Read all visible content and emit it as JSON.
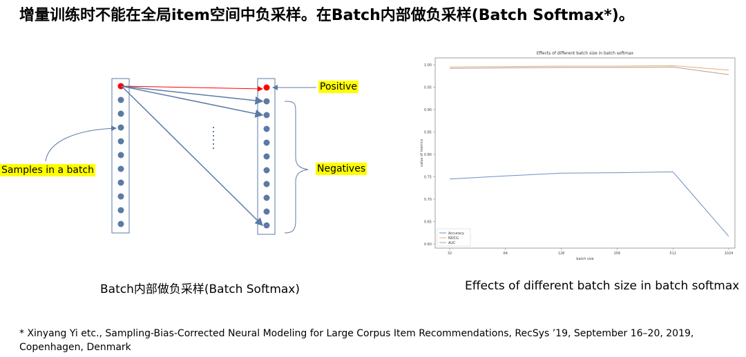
{
  "slide": {
    "title": "增量训练时不能在全局item空间中负采样。在Batch内部做负采样(Batch Softmax*)。",
    "diagram": {
      "caption": "Batch内部做负采样(Batch Softmax)",
      "labels": {
        "samples": "Samples in a batch",
        "positive": "Positive",
        "negatives": "Negatives"
      },
      "colors": {
        "node": "#5b7aa6",
        "positive": "#ff0000",
        "highlight": "#ffff00"
      }
    },
    "chart_caption": "Effects of different batch size in batch softmax",
    "footnote": "* Xinyang Yi etc., Sampling-Bias-Corrected Neural Modeling for Large Corpus Item Recommendations, RecSys ’19, September 16–20, 2019, Copenhagen, Denmark"
  },
  "chart_data": {
    "type": "line",
    "title": "Effects of different batch size in batch softmax",
    "xlabel": "batch size",
    "ylabel": "value of metrics",
    "categories": [
      "32",
      "64",
      "128",
      "256",
      "512",
      "1024"
    ],
    "ylim": [
      0.6,
      1.0
    ],
    "yticks": [
      "0.60",
      "0.65",
      "0.70",
      "0.75",
      "0.80",
      "0.85",
      "0.90",
      "0.95",
      "1.00"
    ],
    "grid": false,
    "legend": "bottom-left",
    "series": [
      {
        "name": "Accuracy",
        "color": "#6a8fc0",
        "values": [
          0.745,
          0.752,
          0.758,
          0.759,
          0.761,
          0.617
        ]
      },
      {
        "name": "NDCG",
        "color": "#e0b070",
        "values": [
          0.995,
          0.996,
          0.997,
          0.997,
          0.998,
          0.988
        ]
      },
      {
        "name": "AUC",
        "color": "#b0a090",
        "values": [
          0.992,
          0.993,
          0.994,
          0.994,
          0.995,
          0.978
        ]
      }
    ]
  }
}
